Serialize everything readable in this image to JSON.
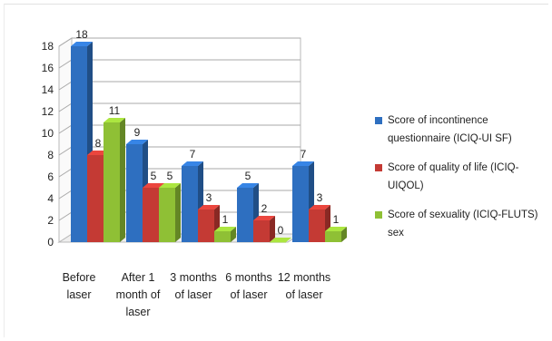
{
  "chart_data": {
    "type": "bar",
    "categories": [
      "Before\nlaser",
      "After 1\nmonth of\nlaser",
      "3 months\nof laser",
      "6 months\nof laser",
      "12 months\nof laser"
    ],
    "series": [
      {
        "name": "Score of incontinence questionnaire (ICIQ-UI SF)",
        "color": "#2e6fc0",
        "values": [
          18,
          9,
          7,
          5,
          7
        ]
      },
      {
        "name": "Score of quality of life (ICIQ-UIQOL)",
        "color": "#c43a34",
        "values": [
          8,
          5,
          3,
          2,
          3
        ]
      },
      {
        "name": "Score of sexuality (ICIQ-FLUTS) sex",
        "color": "#8fc035",
        "values": [
          11,
          5,
          1,
          0,
          1
        ]
      }
    ],
    "data_labels": [
      [
        "18",
        "9",
        "7",
        "5",
        "7"
      ],
      [
        "8",
        "5",
        "3",
        "2",
        "3"
      ],
      [
        "11",
        "5",
        "1",
        "0",
        "1"
      ]
    ],
    "yticks": [
      "0",
      "2",
      "4",
      "6",
      "8",
      "10",
      "12",
      "14",
      "16",
      "18"
    ],
    "ylim": [
      0,
      18
    ],
    "grid": true,
    "legend_position": "right",
    "style": "3d-clustered-column"
  }
}
